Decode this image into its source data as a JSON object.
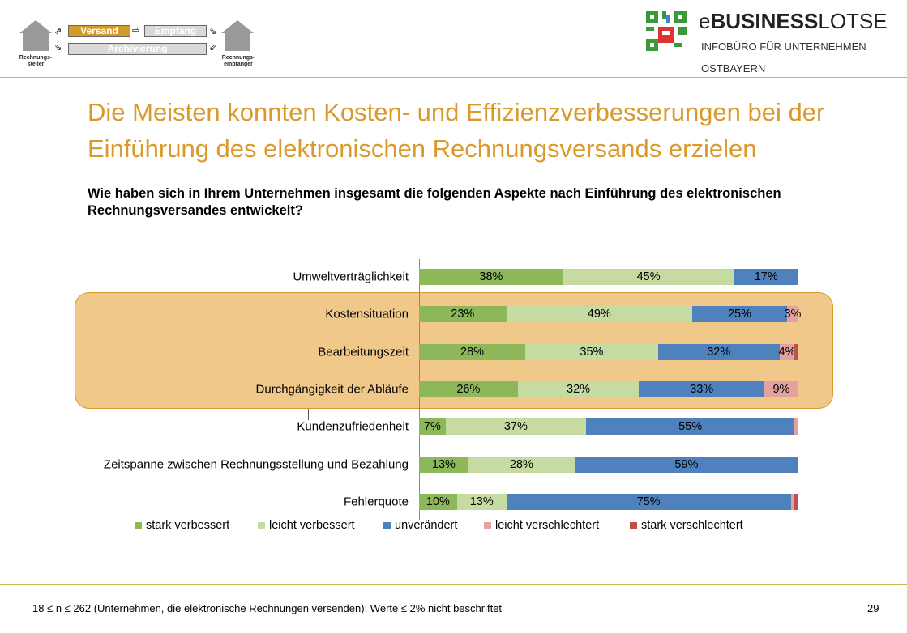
{
  "header": {
    "process_logo": {
      "versand": "Versand",
      "empfang": "Empfang",
      "archivierung": "Archivierung",
      "sender": "Rechnungs-\nsteller",
      "receiver": "Rechnungs-\nempfänger"
    },
    "brand": {
      "name_light1": "e",
      "name_bold": "BUSINESS",
      "name_light2": "LOTSE",
      "line1": "INFOBÜRO FÜR UNTERNEHMEN",
      "line2": "OSTBAYERN"
    }
  },
  "title": "Die Meisten konnten Kosten- und Effizienzverbesserungen bei der Einführung des elektronischen Rechnungsversands erzielen",
  "question": "Wie haben sich in Ihrem Unternehmen insgesamt die folgenden Aspekte nach Einführung des elektronischen Rechnungsversandes entwickelt?",
  "chart_data": {
    "type": "bar",
    "orientation": "horizontal",
    "stacked": "100%",
    "categories": [
      "Umweltverträglichkeit",
      "Kostensituation",
      "Bearbeitungszeit",
      "Durchgängigkeit der Abläufe",
      "Kundenzufriedenheit",
      "Zeitspanne zwischen Rechnungsstellung und Bezahlung",
      "Fehlerquote"
    ],
    "series": [
      {
        "name": "stark verbessert",
        "color": "#8db85a",
        "values": [
          38,
          23,
          28,
          26,
          7,
          13,
          10
        ]
      },
      {
        "name": "leicht verbessert",
        "color": "#c6dba2",
        "values": [
          45,
          49,
          35,
          32,
          37,
          28,
          13
        ]
      },
      {
        "name": "unverändert",
        "color": "#4f81bd",
        "values": [
          17,
          25,
          32,
          33,
          55,
          59,
          75
        ]
      },
      {
        "name": "leicht verschlechtert",
        "color": "#e3a1a0",
        "values": [
          0,
          3,
          4,
          9,
          1,
          0,
          1
        ]
      },
      {
        "name": "stark verschlechtert",
        "color": "#c0504d",
        "values": [
          0,
          0,
          1,
          0,
          0,
          0,
          1
        ]
      }
    ],
    "value_suffix": "%",
    "label_threshold": 2,
    "highlighted_categories": [
      "Kostensituation",
      "Bearbeitungszeit",
      "Durchgängigkeit der Abläufe"
    ],
    "highlight_color": "#f0c98a",
    "legend_position": "bottom"
  },
  "footer": {
    "note": "18 ≤ n ≤ 262 (Unternehmen, die elektronische Rechnungen versenden); Werte ≤ 2% nicht beschriftet",
    "page": "29"
  }
}
